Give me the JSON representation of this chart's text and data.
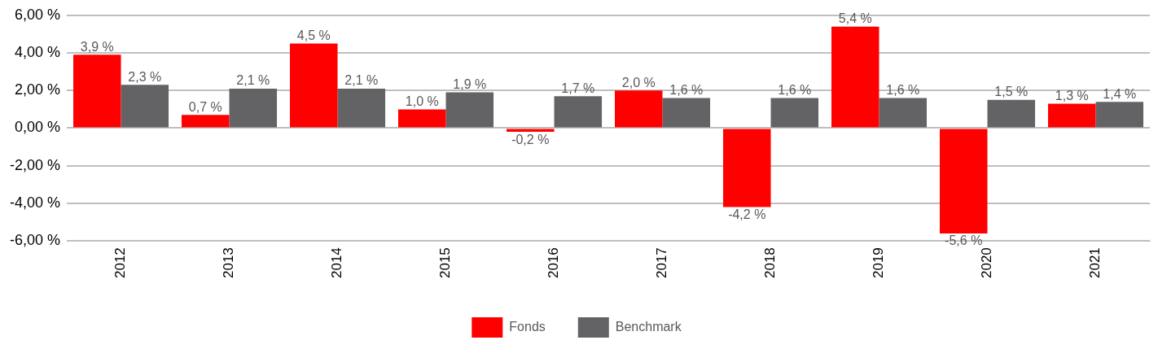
{
  "chart_data": {
    "type": "bar",
    "categories": [
      "2012",
      "2013",
      "2014",
      "2015",
      "2016",
      "2017",
      "2018",
      "2019",
      "2020",
      "2021"
    ],
    "series": [
      {
        "name": "Fonds",
        "color": "#ff0000",
        "values": [
          3.9,
          0.7,
          4.5,
          1.0,
          -0.2,
          2.0,
          -4.2,
          5.4,
          -5.6,
          1.3
        ],
        "value_labels": [
          "3,9 %",
          "0,7 %",
          "4,5 %",
          "1,0 %",
          "-0,2 %",
          "2,0 %",
          "-4,2 %",
          "5,4 %",
          "-5,6 %",
          "1,3 %"
        ]
      },
      {
        "name": "Benchmark",
        "color": "#636366",
        "values": [
          2.3,
          2.1,
          2.1,
          1.9,
          1.7,
          1.6,
          1.6,
          1.6,
          1.5,
          1.4
        ],
        "value_labels": [
          "2,3 %",
          "2,1 %",
          "2,1 %",
          "1,9 %",
          "1,7 %",
          "1,6 %",
          "1,6 %",
          "1,6 %",
          "1,5 %",
          "1,4 %"
        ]
      }
    ],
    "ylim": [
      -6,
      6
    ],
    "yticks": [
      {
        "value": -6,
        "label": "-6,00 %"
      },
      {
        "value": -4,
        "label": "-4,00 %"
      },
      {
        "value": -2,
        "label": "-2,00 %"
      },
      {
        "value": 0,
        "label": "0,00 %"
      },
      {
        "value": 2,
        "label": "2,00 %"
      },
      {
        "value": 4,
        "label": "4,00 %"
      },
      {
        "value": 6,
        "label": "6,00 %"
      }
    ],
    "grid": "y",
    "legend": "bottom"
  }
}
